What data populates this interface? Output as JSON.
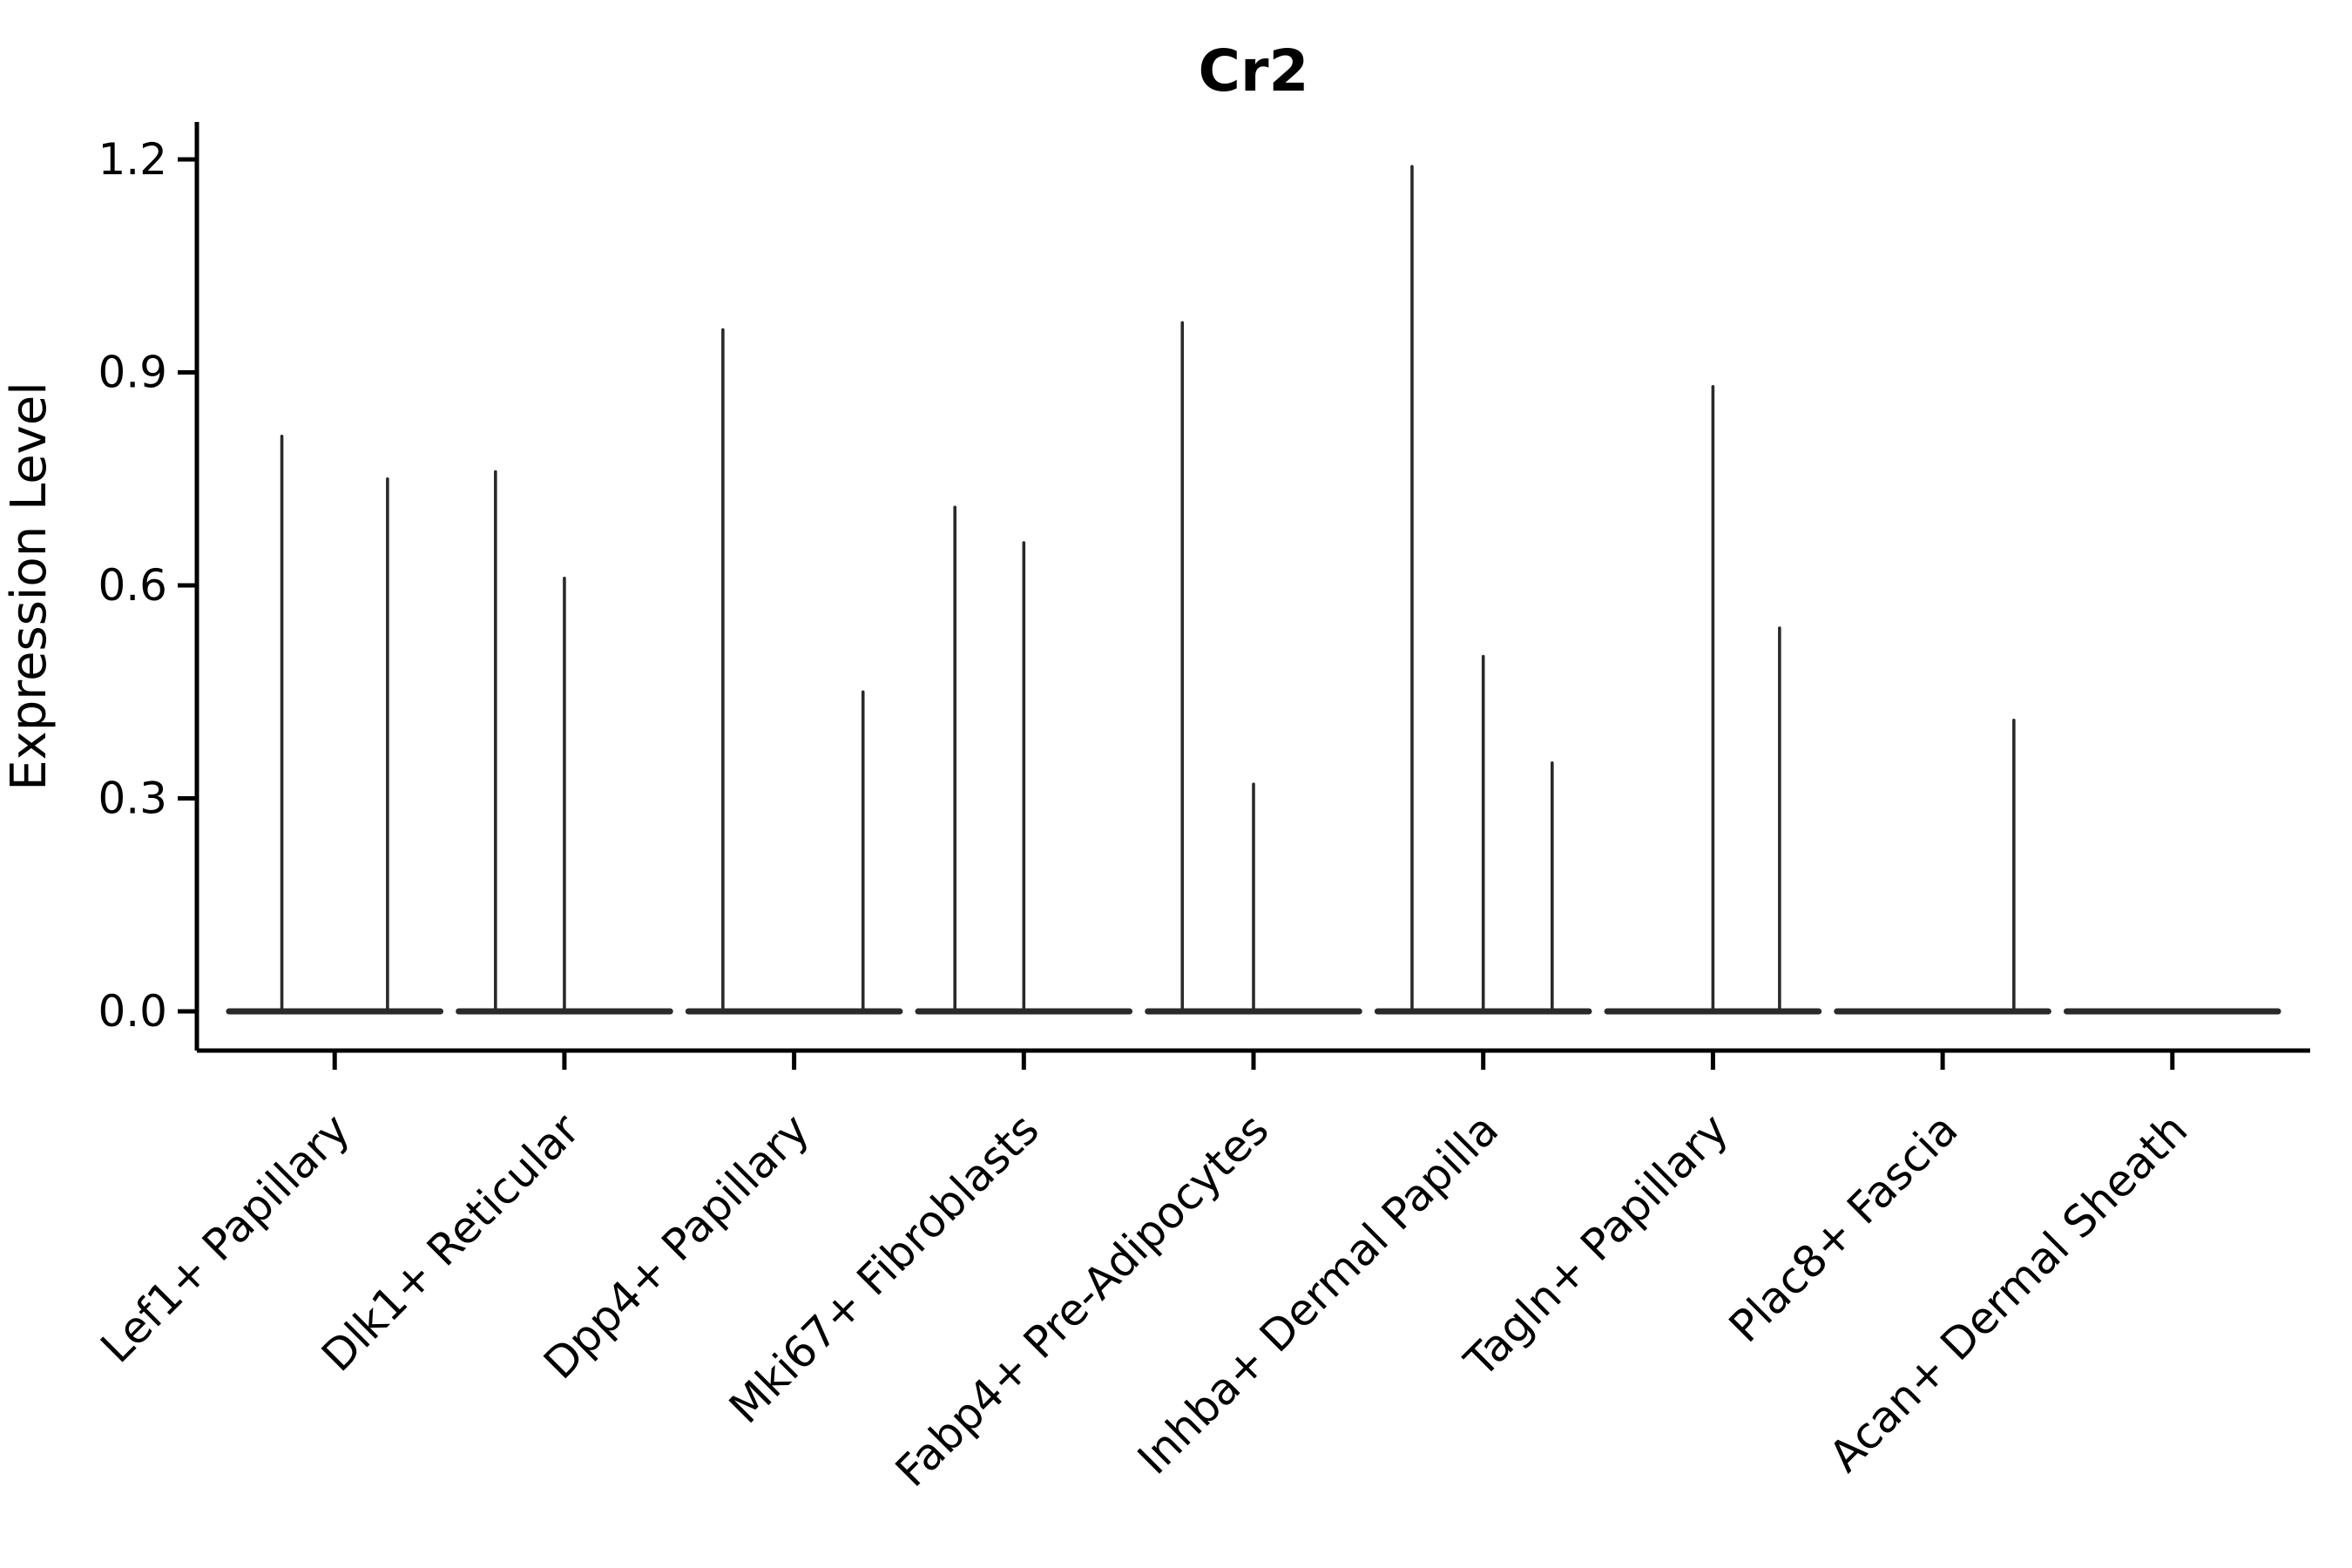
{
  "chart_data": {
    "type": "violin",
    "title": "Cr2",
    "ylabel": "Expression Level",
    "xlabel": "",
    "yticks": [
      "0.0",
      "0.3",
      "0.6",
      "0.9",
      "1.2"
    ],
    "ytick_values": [
      0.0,
      0.3,
      0.6,
      0.9,
      1.2
    ],
    "ylim": [
      -0.056,
      1.25
    ],
    "grid": false,
    "legend": null,
    "x_tick_rotation_deg": 45,
    "violin_color": "#2a2a2a",
    "axis_color": "#000000",
    "background_color": "#ffffff",
    "categories": [
      "Lef1+ Papillary",
      "Dlk1+ Reticular",
      "Dpp4+ Papillary",
      "Mki67+ Fibroblasts",
      "Fabp4+ Pre-Adipocytes",
      "Inhba+ Dermal Papilla",
      "Tagln+ Papillary",
      "Plac8+ Fascia",
      "Acan+ Dermal Sheath"
    ],
    "baseline_value": 0.0,
    "baseline_halfwidth_frac": 0.46,
    "groups": [
      {
        "category": "Lef1+ Papillary",
        "violins": [
          {
            "dodge": -0.23,
            "max": 0.81
          },
          {
            "dodge": 0.23,
            "max": 0.75
          }
        ]
      },
      {
        "category": "Dlk1+ Reticular",
        "violins": [
          {
            "dodge": -0.3,
            "max": 0.76
          },
          {
            "dodge": 0.0,
            "max": 0.61
          }
        ]
      },
      {
        "category": "Dpp4+ Papillary",
        "violins": [
          {
            "dodge": -0.31,
            "max": 0.96
          },
          {
            "dodge": 0.3,
            "max": 0.45
          }
        ]
      },
      {
        "category": "Mki67+ Fibroblasts",
        "violins": [
          {
            "dodge": -0.3,
            "max": 0.71
          },
          {
            "dodge": 0.0,
            "max": 0.66
          }
        ]
      },
      {
        "category": "Fabp4+ Pre-Adipocytes",
        "violins": [
          {
            "dodge": -0.31,
            "max": 0.97
          },
          {
            "dodge": 0.0,
            "max": 0.32
          }
        ]
      },
      {
        "category": "Inhba+ Dermal Papilla",
        "violins": [
          {
            "dodge": -0.31,
            "max": 1.19
          },
          {
            "dodge": 0.0,
            "max": 0.5
          },
          {
            "dodge": 0.3,
            "max": 0.35
          }
        ]
      },
      {
        "category": "Tagln+ Papillary",
        "violins": [
          {
            "dodge": 0.0,
            "max": 0.88
          },
          {
            "dodge": 0.29,
            "max": 0.54
          }
        ]
      },
      {
        "category": "Plac8+ Fascia",
        "violins": [
          {
            "dodge": 0.31,
            "max": 0.41
          }
        ]
      },
      {
        "category": "Acan+ Dermal Sheath",
        "violins": []
      }
    ]
  }
}
